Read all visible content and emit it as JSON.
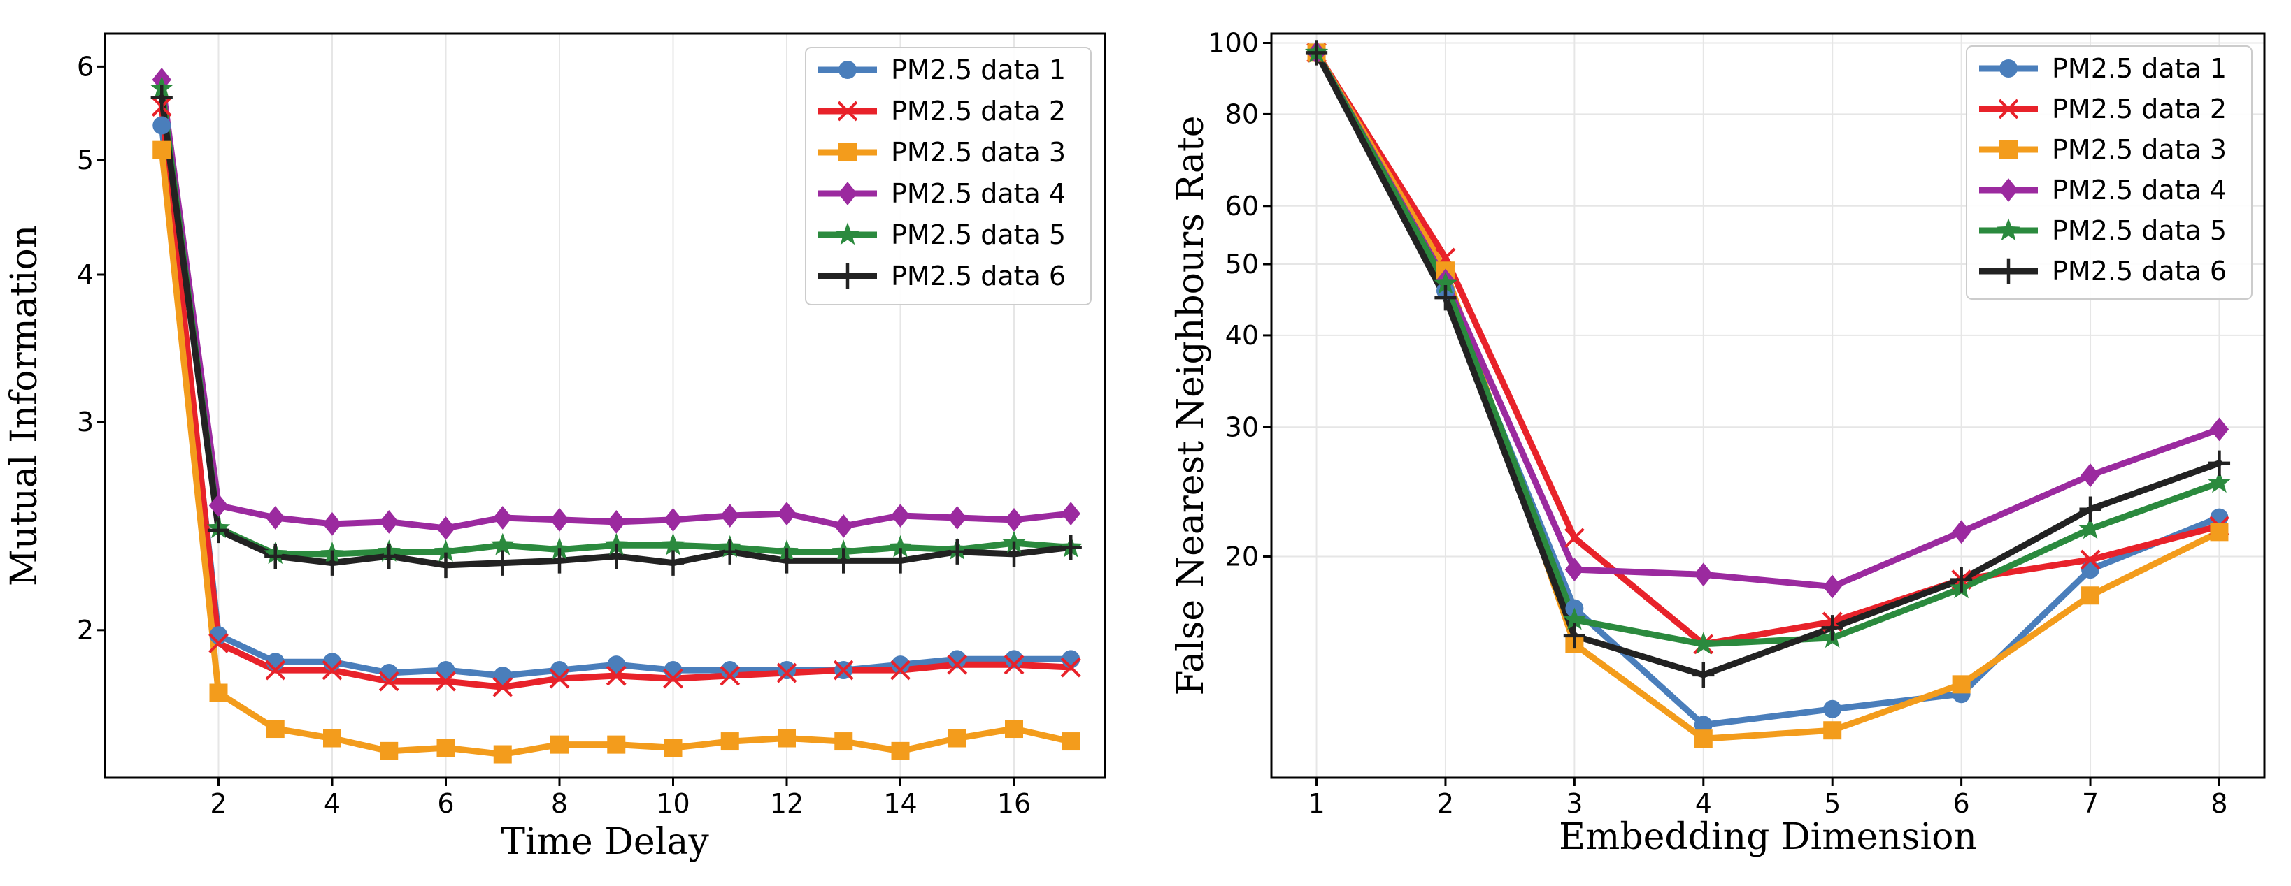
{
  "chart_data": [
    {
      "type": "line",
      "title": "",
      "xlabel": "Time Delay",
      "ylabel": "Mutual Information",
      "yscale": "log",
      "xlim": [
        0,
        17.6
      ],
      "ylim": [
        1.5,
        6.4
      ],
      "xticks": [
        2,
        4,
        6,
        8,
        10,
        12,
        14,
        16
      ],
      "xtick_labels": [
        "2",
        "4",
        "6",
        "8",
        "10",
        "12",
        "14",
        "16"
      ],
      "yticks": [
        2,
        3,
        4,
        5,
        6
      ],
      "ytick_labels": [
        "2",
        "3",
        "4",
        "5",
        "6"
      ],
      "grid": "vertical",
      "legend_position": "top-right",
      "x": [
        1,
        2,
        3,
        4,
        5,
        6,
        7,
        8,
        9,
        10,
        11,
        12,
        13,
        14,
        15,
        16,
        17
      ],
      "series": [
        {
          "name": "PM2.5 data 1",
          "color": "#4a7ebb",
          "marker": "circle",
          "values": [
            5.35,
            1.98,
            1.88,
            1.88,
            1.84,
            1.85,
            1.83,
            1.85,
            1.87,
            1.85,
            1.85,
            1.85,
            1.85,
            1.87,
            1.89,
            1.89,
            1.89
          ]
        },
        {
          "name": "PM2.5 data 2",
          "color": "#e8222a",
          "marker": "x",
          "values": [
            5.55,
            1.95,
            1.85,
            1.85,
            1.81,
            1.81,
            1.79,
            1.82,
            1.83,
            1.82,
            1.83,
            1.84,
            1.85,
            1.85,
            1.87,
            1.87,
            1.86
          ]
        },
        {
          "name": "PM2.5 data 3",
          "color": "#f39c1c",
          "marker": "square",
          "values": [
            5.1,
            1.77,
            1.65,
            1.62,
            1.58,
            1.59,
            1.57,
            1.6,
            1.6,
            1.59,
            1.61,
            1.62,
            1.61,
            1.58,
            1.62,
            1.65,
            1.61
          ]
        },
        {
          "name": "PM2.5 data 4",
          "color": "#9b2a9f",
          "marker": "diamond",
          "values": [
            5.85,
            2.55,
            2.49,
            2.46,
            2.47,
            2.44,
            2.49,
            2.48,
            2.47,
            2.48,
            2.5,
            2.51,
            2.45,
            2.5,
            2.49,
            2.48,
            2.51
          ]
        },
        {
          "name": "PM2.5 data 5",
          "color": "#2b8a3e",
          "marker": "star",
          "values": [
            5.75,
            2.44,
            2.32,
            2.32,
            2.33,
            2.33,
            2.36,
            2.34,
            2.36,
            2.36,
            2.35,
            2.33,
            2.33,
            2.35,
            2.34,
            2.37,
            2.35
          ]
        },
        {
          "name": "PM2.5 data 6",
          "color": "#222222",
          "marker": "plus",
          "values": [
            5.65,
            2.43,
            2.31,
            2.28,
            2.31,
            2.27,
            2.28,
            2.29,
            2.31,
            2.28,
            2.33,
            2.29,
            2.29,
            2.29,
            2.33,
            2.32,
            2.35
          ]
        }
      ]
    },
    {
      "type": "line",
      "title": "",
      "xlabel": "Embedding Dimension",
      "ylabel": "False Nearest Neighbours Rate",
      "yscale": "log",
      "xlim": [
        0.65,
        8.35
      ],
      "ylim": [
        10,
        103
      ],
      "xticks": [
        1,
        2,
        3,
        4,
        5,
        6,
        7,
        8
      ],
      "xtick_labels": [
        "1",
        "2",
        "3",
        "4",
        "5",
        "6",
        "7",
        "8"
      ],
      "yticks": [
        20,
        30,
        40,
        50,
        60,
        80,
        100
      ],
      "ytick_labels": [
        "20",
        "30",
        "40",
        "50",
        "60",
        "80",
        "100"
      ],
      "grid": "both",
      "legend_position": "top-right",
      "x": [
        1,
        2,
        3,
        4,
        5,
        6,
        7,
        8
      ],
      "series": [
        {
          "name": "PM2.5 data 1",
          "color": "#4a7ebb",
          "marker": "circle",
          "values": [
            97,
            46,
            17,
            11.8,
            12.4,
            13,
            19.2,
            22.6
          ]
        },
        {
          "name": "PM2.5 data 2",
          "color": "#e8222a",
          "marker": "x",
          "values": [
            97,
            51,
            21.2,
            15.2,
            16.3,
            18.6,
            19.8,
            22
          ]
        },
        {
          "name": "PM2.5 data 3",
          "color": "#f39c1c",
          "marker": "square",
          "values": [
            97,
            49,
            15.2,
            11.3,
            11.6,
            13.4,
            17.7,
            21.6
          ]
        },
        {
          "name": "PM2.5 data 4",
          "color": "#9b2a9f",
          "marker": "diamond",
          "values": [
            97,
            47.5,
            19.2,
            18.9,
            18.2,
            21.6,
            25.8,
            29.8
          ]
        },
        {
          "name": "PM2.5 data 5",
          "color": "#2b8a3e",
          "marker": "star",
          "values": [
            97,
            47,
            16.4,
            15.2,
            15.5,
            18.1,
            21.8,
            25.2
          ]
        },
        {
          "name": "PM2.5 data 6",
          "color": "#222222",
          "marker": "plus",
          "values": [
            97,
            45,
            15.6,
            13.8,
            16,
            18.6,
            23.2,
            26.8
          ]
        }
      ]
    }
  ]
}
